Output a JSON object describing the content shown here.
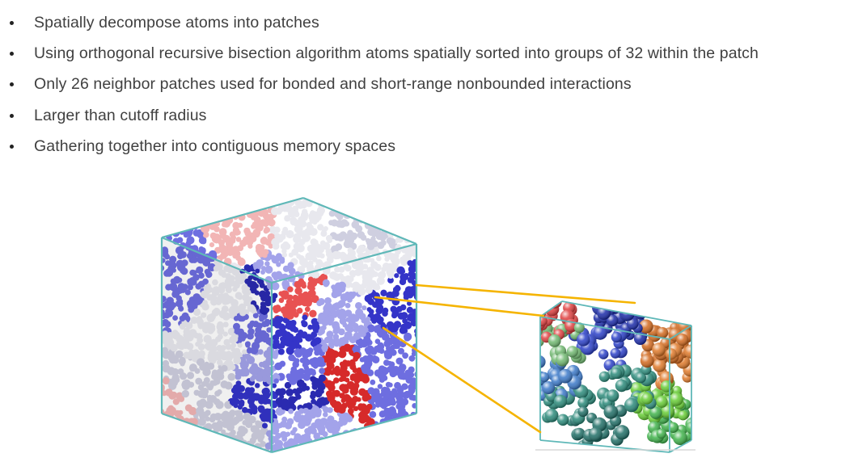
{
  "bullets": [
    {
      "text": "Spatially decompose atoms into patches"
    },
    {
      "text": "Using orthogonal recursive bisection algorithm atoms spatially sorted into groups of 32 within the patch"
    },
    {
      "text": "Only 26 neighbor patches used for bonded and short-range nonbounded interactions"
    },
    {
      "text": "Larger than cutoff radius"
    },
    {
      "text": "Gathering together into contiguous memory spaces"
    }
  ],
  "figure": {
    "large_box_palette": [
      "#d62a2a",
      "#e85252",
      "#f2b5b5",
      "#e8e8ee",
      "#cfcfe0",
      "#6e6ee0",
      "#3434c8",
      "#2a2ab0",
      "#a3a3ea"
    ],
    "small_box_palette": [
      "#2a3fc8",
      "#1a2aa8",
      "#d2691e",
      "#e07a2a",
      "#66cc33",
      "#3fb24a",
      "#2a8a7a",
      "#1f6e66",
      "#3a78c8",
      "#70b870",
      "#e04040"
    ],
    "box_edge_color": "#5fb8b8",
    "connector_color": "#f5b400"
  }
}
